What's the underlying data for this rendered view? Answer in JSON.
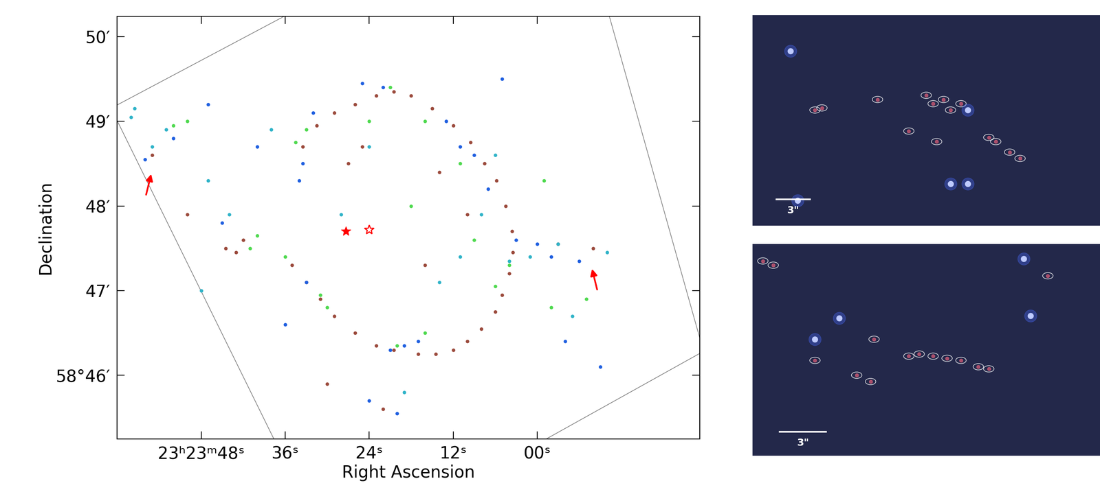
{
  "chart_data": {
    "type": "scatter",
    "xlabel": "Right Ascension",
    "ylabel": "Declination",
    "xlim": [
      60,
      -23.2
    ],
    "ylim": [
      45.25,
      50.24
    ],
    "xticks": [
      {
        "value": 48,
        "label": "23ʰ23ᵐ48ˢ"
      },
      {
        "value": 36,
        "label": "36ˢ"
      },
      {
        "value": 24,
        "label": "24ˢ"
      },
      {
        "value": 12,
        "label": "12ˢ"
      },
      {
        "value": 0,
        "label": "00ˢ"
      }
    ],
    "yticks": [
      {
        "value": 46,
        "label": "58°46′"
      },
      {
        "value": 47,
        "label": "47′"
      },
      {
        "value": 48,
        "label": "48′"
      },
      {
        "value": 49,
        "label": "49′"
      },
      {
        "value": 50,
        "label": "50′"
      }
    ],
    "series": [
      {
        "color": "#9b4a3c",
        "marker": "dot",
        "x": [
          20.5,
          23,
          26,
          29,
          31.5,
          33.5,
          18,
          15,
          12,
          9.5,
          7.5,
          5.8,
          4.5,
          3.6,
          3.5,
          4,
          5,
          6,
          8,
          10,
          12,
          14.5,
          17,
          20.5,
          23,
          26,
          29,
          31,
          33,
          35,
          14,
          16,
          10,
          27,
          25,
          42,
          43,
          44.5,
          55,
          50,
          -3,
          -8,
          30,
          22
        ],
        "y": [
          49.35,
          49.3,
          49.2,
          49.1,
          48.95,
          48.7,
          49.3,
          49.15,
          48.95,
          48.75,
          48.5,
          48.3,
          48.0,
          47.7,
          47.45,
          47.2,
          46.95,
          46.75,
          46.55,
          46.4,
          46.3,
          46.25,
          46.25,
          46.3,
          46.35,
          46.5,
          46.7,
          46.9,
          47.1,
          47.3,
          48.4,
          47.3,
          47.9,
          48.5,
          48.7,
          47.6,
          47.45,
          47.5,
          48.6,
          47.9,
          47.55,
          47.5,
          45.9,
          45.6
        ]
      },
      {
        "color": "#1f5fe0",
        "marker": "dot",
        "x": [
          32,
          33.5,
          34,
          21,
          19,
          17,
          9,
          7,
          3,
          0,
          -2,
          -6,
          25,
          22,
          13,
          11,
          45,
          52,
          56,
          24,
          20,
          40,
          5,
          -4,
          33,
          36,
          -9,
          47
        ],
        "y": [
          49.1,
          48.5,
          48.3,
          46.3,
          46.35,
          46.4,
          48.6,
          48.2,
          47.6,
          47.55,
          47.4,
          47.35,
          49.45,
          49.4,
          49.0,
          48.7,
          47.8,
          48.8,
          48.55,
          45.7,
          45.55,
          48.7,
          49.5,
          46.4,
          47.1,
          46.6,
          46.1,
          49.2
        ]
      },
      {
        "color": "#4fd94f",
        "marker": "dot",
        "x": [
          34.5,
          33,
          21,
          16,
          31,
          30,
          20,
          16,
          6,
          9,
          4,
          40,
          41,
          52,
          50,
          -1,
          -2,
          36,
          24,
          18,
          11,
          -7
        ],
        "y": [
          48.75,
          48.9,
          49.4,
          49.0,
          46.95,
          46.8,
          46.35,
          46.5,
          47.05,
          47.6,
          47.3,
          47.65,
          47.5,
          48.95,
          49.0,
          48.3,
          46.8,
          47.4,
          49.0,
          48.0,
          48.5,
          46.9
        ]
      },
      {
        "color": "#2fb3c8",
        "marker": "dot",
        "x": [
          55,
          53,
          58,
          47,
          44,
          4,
          1,
          -3,
          -10,
          8,
          14,
          28,
          24,
          11,
          38,
          48,
          -5,
          19,
          6,
          57.5
        ],
        "y": [
          48.7,
          48.9,
          49.05,
          48.3,
          47.9,
          47.35,
          47.4,
          47.55,
          47.45,
          47.9,
          47.1,
          47.9,
          48.7,
          47.4,
          48.9,
          47.0,
          46.7,
          45.8,
          48.6,
          49.15
        ]
      }
    ],
    "markers": [
      {
        "x": 27.3,
        "y": 47.7,
        "marker": "filled_star",
        "color": "red"
      },
      {
        "x": 24.0,
        "y": 47.72,
        "marker": "open_star",
        "color": "red"
      }
    ],
    "arrows": [
      {
        "x": [
          55.9,
          55.1
        ],
        "y": [
          48.12,
          48.39
        ],
        "color": "red"
      },
      {
        "x": [
          -8.6,
          -7.8
        ],
        "y": [
          47.0,
          47.27
        ],
        "color": "red"
      }
    ],
    "panels": [
      {
        "scale_label": "3\""
      },
      {
        "scale_label": "3\""
      }
    ]
  }
}
